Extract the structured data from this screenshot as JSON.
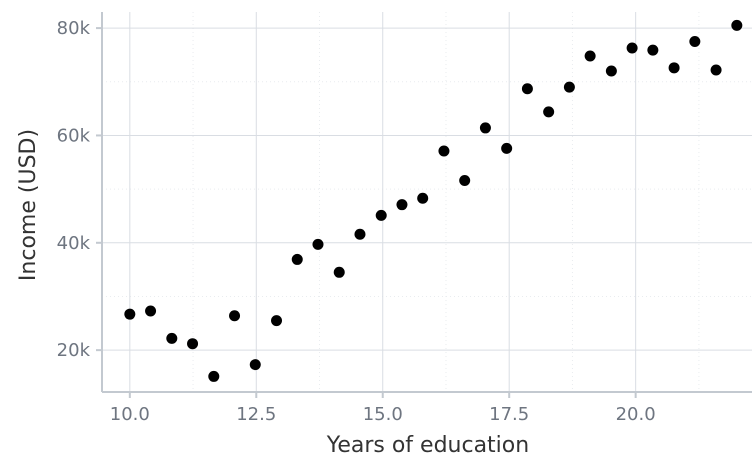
{
  "chart_data": {
    "type": "scatter",
    "xlabel": "Years of education",
    "ylabel": "Income (USD)",
    "xlim": [
      9.45,
      22.3
    ],
    "ylim": [
      12200,
      83000
    ],
    "x_ticks": [
      10.0,
      12.5,
      15.0,
      17.5,
      20.0
    ],
    "x_tick_labels": [
      "10.0",
      "12.5",
      "15.0",
      "17.5",
      "20.0"
    ],
    "y_ticks": [
      20000,
      40000,
      60000,
      80000
    ],
    "y_tick_labels": [
      "20k",
      "40k",
      "60k",
      "80k"
    ],
    "grid": true,
    "points": [
      {
        "x": 10.0,
        "y": 26700
      },
      {
        "x": 10.41,
        "y": 27300
      },
      {
        "x": 10.83,
        "y": 22200
      },
      {
        "x": 11.24,
        "y": 21200
      },
      {
        "x": 11.66,
        "y": 15100
      },
      {
        "x": 12.07,
        "y": 26400
      },
      {
        "x": 12.48,
        "y": 17300
      },
      {
        "x": 12.9,
        "y": 25500
      },
      {
        "x": 13.31,
        "y": 36900
      },
      {
        "x": 13.72,
        "y": 39700
      },
      {
        "x": 14.14,
        "y": 34500
      },
      {
        "x": 14.55,
        "y": 41600
      },
      {
        "x": 14.97,
        "y": 45100
      },
      {
        "x": 15.38,
        "y": 47100
      },
      {
        "x": 15.79,
        "y": 48300
      },
      {
        "x": 16.21,
        "y": 57100
      },
      {
        "x": 16.62,
        "y": 51600
      },
      {
        "x": 17.03,
        "y": 61400
      },
      {
        "x": 17.45,
        "y": 57600
      },
      {
        "x": 17.86,
        "y": 68700
      },
      {
        "x": 18.28,
        "y": 64400
      },
      {
        "x": 18.69,
        "y": 69000
      },
      {
        "x": 19.1,
        "y": 74800
      },
      {
        "x": 19.52,
        "y": 72000
      },
      {
        "x": 19.93,
        "y": 76300
      },
      {
        "x": 20.34,
        "y": 75900
      },
      {
        "x": 20.76,
        "y": 72600
      },
      {
        "x": 21.17,
        "y": 77500
      },
      {
        "x": 21.59,
        "y": 72200
      },
      {
        "x": 22.0,
        "y": 80500
      }
    ],
    "point_color": "#000000"
  }
}
